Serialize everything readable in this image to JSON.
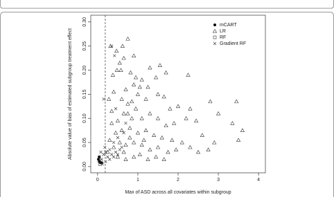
{
  "chart_data": {
    "type": "scatter",
    "x_label": "Max of ASD across all covariates within subgroup",
    "y_label": "Absolute value of bias of estimated subgroup treatment effect",
    "xlim": [
      -0.17,
      4.17
    ],
    "ylim": [
      -0.013,
      0.314
    ],
    "xticks": [
      0,
      1,
      2,
      3,
      4
    ],
    "yticks": [
      {
        "value": 0,
        "label": "0.00"
      },
      {
        "value": 0.05,
        "label": "0.05"
      },
      {
        "value": 0.1,
        "label": "0.10"
      },
      {
        "value": 0.15,
        "label": "0.15"
      },
      {
        "value": 0.2,
        "label": "0.20"
      },
      {
        "value": 0.25,
        "label": "0.25"
      },
      {
        "value": 0.3,
        "label": "0.30"
      }
    ],
    "reference_line_x": 0.19,
    "legend": "top-right",
    "series": [
      {
        "name": "mCART",
        "marker": "filled-circle",
        "color": "#000000",
        "x": [
          0.02,
          0.05,
          0.07,
          0.1,
          0.04
        ],
        "y": [
          0.015,
          0.01,
          0.008,
          0.008,
          0.02
        ]
      },
      {
        "name": "LR",
        "marker": "triangle",
        "color": "#333333",
        "x": [
          0.32,
          0.47,
          0.62,
          0.75,
          0.9,
          0.65,
          0.55,
          0.48,
          0.38,
          0.58,
          0.82,
          0.95,
          1.1,
          1.3,
          1.55,
          1.45,
          1.7,
          2.25,
          1.25,
          1.05,
          0.9,
          0.7,
          0.4,
          0.28,
          0.6,
          0.75,
          1.0,
          1.2,
          1.5,
          1.65,
          1.8,
          2.0,
          2.3,
          2.8,
          3.45,
          3.0,
          3.35,
          3.6,
          3.5,
          2.9,
          2.75,
          2.6,
          2.2,
          2.45,
          1.9,
          1.7,
          1.5,
          1.3,
          1.1,
          0.95,
          0.85,
          0.65,
          0.5,
          0.35,
          0.45,
          0.6,
          0.8,
          1.0,
          1.2,
          1.4,
          1.6,
          1.85,
          2.1,
          2.3,
          2.5,
          1.95,
          1.75,
          1.5,
          1.3,
          1.1,
          0.9,
          0.7,
          0.55,
          0.4,
          0.3,
          0.25,
          0.5,
          0.7,
          0.9,
          1.05,
          1.25,
          1.45,
          1.65,
          0.85,
          0.8,
          0.65,
          1.15,
          0.75,
          0.35
        ],
        "y": [
          0.25,
          0.24,
          0.25,
          0.265,
          0.23,
          0.225,
          0.215,
          0.2,
          0.19,
          0.2,
          0.195,
          0.185,
          0.18,
          0.205,
          0.21,
          0.185,
          0.195,
          0.19,
          0.165,
          0.165,
          0.17,
          0.16,
          0.155,
          0.14,
          0.14,
          0.13,
          0.15,
          0.14,
          0.15,
          0.145,
          0.12,
          0.125,
          0.12,
          0.135,
          0.135,
          0.11,
          0.09,
          0.075,
          0.055,
          0.05,
          0.035,
          0.065,
          0.1,
          0.095,
          0.09,
          0.085,
          0.1,
          0.11,
          0.1,
          0.12,
          0.1,
          0.11,
          0.095,
          0.09,
          0.07,
          0.075,
          0.08,
          0.07,
          0.075,
          0.065,
          0.06,
          0.055,
          0.05,
          0.04,
          0.03,
          0.035,
          0.03,
          0.04,
          0.035,
          0.045,
          0.05,
          0.045,
          0.05,
          0.04,
          0.055,
          0.03,
          0.02,
          0.015,
          0.02,
          0.025,
          0.015,
          0.02,
          0.015,
          0.135,
          0.06,
          0.03,
          0.055,
          0.11,
          0.115
        ]
      },
      {
        "name": "RF",
        "marker": "square",
        "color": "#333333",
        "x": [
          0.04,
          0.06
        ],
        "y": [
          0.012,
          0.005
        ]
      },
      {
        "name": "Gradient RF",
        "marker": "cross",
        "color": "#333333",
        "x": [
          0.05,
          0.1,
          0.15,
          0.2,
          0.25,
          0.3,
          0.35,
          0.4,
          0.45,
          0.5,
          0.55,
          0.6,
          0.3,
          0.2,
          0.08,
          0.12,
          0.18,
          0.4,
          0.5,
          0.65,
          0.35,
          0.42,
          0.15,
          0.45,
          0.7
        ],
        "y": [
          0.02,
          0.015,
          0.025,
          0.01,
          0.02,
          0.015,
          0.025,
          0.02,
          0.03,
          0.025,
          0.035,
          0.04,
          0.035,
          0.03,
          0.03,
          0.005,
          0.04,
          0.05,
          0.06,
          0.07,
          0.25,
          0.23,
          0.14,
          0.12,
          0.09
        ]
      }
    ]
  }
}
